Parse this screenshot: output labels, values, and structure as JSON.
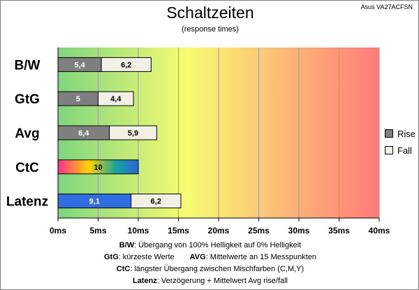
{
  "chart_data": {
    "type": "bar",
    "orientation": "horizontal",
    "stacked": true,
    "title": "Schaltzeiten",
    "subtitle": "(response times)",
    "model": "Asus VA27ACFSN",
    "categories": [
      "B/W",
      "GtG",
      "Avg",
      "CtC",
      "Latenz"
    ],
    "series": [
      {
        "name": "Rise",
        "values": [
          5.4,
          5,
          6.4,
          10,
          9.1
        ],
        "labels": [
          "5,4",
          "5",
          "6,4",
          "10",
          "9,1"
        ]
      },
      {
        "name": "Fall",
        "values": [
          6.2,
          4.4,
          5.9,
          null,
          6.2
        ],
        "labels": [
          "6,2",
          "4,4",
          "5,9",
          "",
          "6,2"
        ]
      }
    ],
    "bar_colors": {
      "rise": "#7f7f7f",
      "fall": "#f2f0e4",
      "ctc": [
        "#ff2d8c",
        "#ffd400",
        "#17a5a0",
        "#2c63d8"
      ],
      "latenz_rise": "#2f6de0"
    },
    "background_gradient": [
      "#7ed67e",
      "#f8fb72",
      "#ff7a7a"
    ],
    "xlim": [
      0,
      40
    ],
    "xticks": [
      0,
      5,
      10,
      15,
      20,
      25,
      30,
      35,
      40
    ],
    "xtick_labels": [
      "0ms",
      "5ms",
      "10ms",
      "15ms",
      "20ms",
      "25ms",
      "30ms",
      "35ms",
      "40ms"
    ],
    "grid": true,
    "legend_position": "right"
  },
  "footnotes": [
    {
      "term": "B/W",
      "text": ":  Übergang von 100% Helligkeit auf 0% Helligkeit"
    },
    {
      "term": "GtG",
      "text": ": kürzeste  Werte",
      "term2": "AVG",
      "text2": ": Mittelwerte  an 15 Messpunkten"
    },
    {
      "term": "CtC",
      "text": ": längster Übergang  zwischen Mischfarben  (C,M,Y)"
    },
    {
      "term": "Latenz",
      "text": ": Verzögerung  + Mittelwert  Avg rise/fall"
    }
  ]
}
